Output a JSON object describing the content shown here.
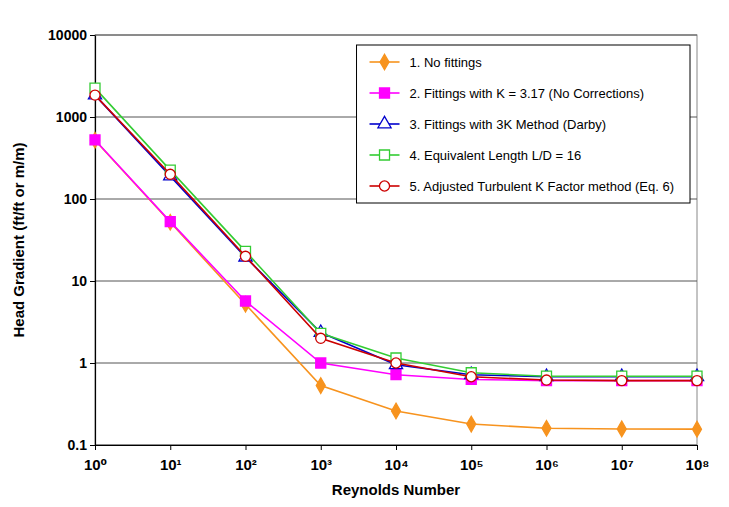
{
  "chart_data": {
    "type": "line",
    "x_label": "Reynolds Number",
    "y_label": "Head Gradient (ft/ft or m/m)",
    "log": true,
    "grid": "y",
    "legend": "top-right",
    "x": [
      1,
      10,
      100,
      1000,
      10000,
      100000,
      1000000,
      10000000,
      100000000
    ],
    "xlim": [
      1,
      100000000
    ],
    "xticks": [
      {
        "value": 1,
        "label": "10⁰"
      },
      {
        "value": 10,
        "label": "10¹"
      },
      {
        "value": 100,
        "label": "10²"
      },
      {
        "value": 1000,
        "label": "10³"
      },
      {
        "value": 10000,
        "label": "10⁴"
      },
      {
        "value": 100000,
        "label": "10⁵"
      },
      {
        "value": 1000000,
        "label": "10⁶"
      },
      {
        "value": 10000000,
        "label": "10⁷"
      },
      {
        "value": 100000000,
        "label": "10⁸"
      }
    ],
    "ylim": [
      0.1,
      10000
    ],
    "yticks": [
      0.1,
      1,
      10,
      100,
      1000,
      10000
    ],
    "series": [
      {
        "name": "1. No fittings",
        "color": "#f7931e",
        "marker": "diamond",
        "values": [
          520,
          52,
          5.2,
          0.53,
          0.26,
          0.18,
          0.16,
          0.157,
          0.156
        ]
      },
      {
        "name": "2. Fittings with K = 3.17 (No Corrections)",
        "color": "#ff00ff",
        "marker": "square",
        "values": [
          525,
          53,
          5.7,
          1.0,
          0.72,
          0.63,
          0.61,
          0.61,
          0.61
        ]
      },
      {
        "name": "3. Fittings with 3K Method (Darby)",
        "color": "#0000cc",
        "marker": "triangle-open",
        "values": [
          1850,
          190,
          19.5,
          2.35,
          0.95,
          0.72,
          0.68,
          0.68,
          0.68
        ]
      },
      {
        "name": "4. Equivalent Length L/D = 16",
        "color": "#33cc33",
        "marker": "square-open",
        "values": [
          2250,
          225,
          23,
          2.3,
          1.15,
          0.76,
          0.69,
          0.69,
          0.69
        ]
      },
      {
        "name": "5. Adjusted Turbulent K Factor method (Eq. 6)",
        "color": "#cc0000",
        "marker": "circle-open",
        "values": [
          1850,
          200,
          20,
          2.0,
          1.0,
          0.68,
          0.62,
          0.61,
          0.61
        ]
      }
    ]
  }
}
